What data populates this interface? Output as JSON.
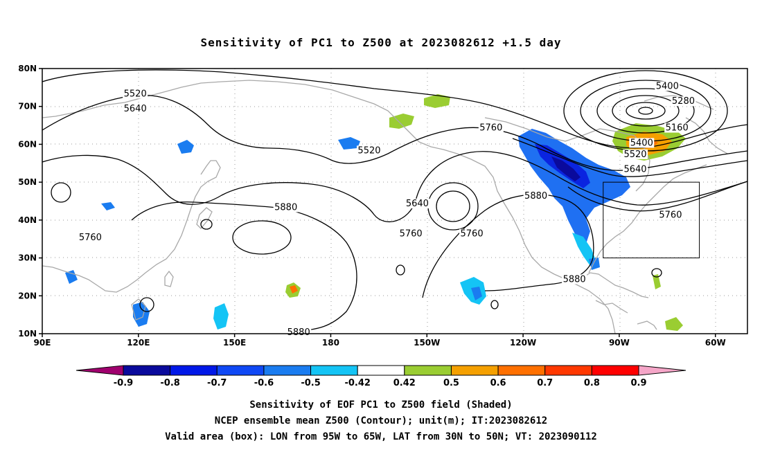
{
  "title": "Sensitivity of PC1 to Z500 at 2023082612 +1.5 day",
  "map": {
    "projection": "cylindrical",
    "lon_range": [
      90,
      310
    ],
    "lat_range": [
      10,
      80
    ],
    "lon_ticks": [
      {
        "lon": 90,
        "label": "90E"
      },
      {
        "lon": 120,
        "label": "120E"
      },
      {
        "lon": 150,
        "label": "150E"
      },
      {
        "lon": 180,
        "label": "180"
      },
      {
        "lon": 210,
        "label": "150W"
      },
      {
        "lon": 240,
        "label": "120W"
      },
      {
        "lon": 270,
        "label": "90W"
      },
      {
        "lon": 300,
        "label": "60W"
      }
    ],
    "lat_ticks": [
      {
        "lat": 10,
        "label": "10N"
      },
      {
        "lat": 20,
        "label": "20N"
      },
      {
        "lat": 30,
        "label": "30N"
      },
      {
        "lat": 40,
        "label": "40N"
      },
      {
        "lat": 50,
        "label": "50N"
      },
      {
        "lat": 60,
        "label": "60N"
      },
      {
        "lat": 70,
        "label": "70N"
      },
      {
        "lat": 80,
        "label": "80N"
      }
    ],
    "grid": "dotted",
    "valid_box": {
      "lon_min": 265,
      "lon_max": 295,
      "lat_min": 30,
      "lat_max": 50
    }
  },
  "contour_labels": [
    {
      "text": "5520",
      "lon": 119,
      "lat": 73
    },
    {
      "text": "5640",
      "lon": 119,
      "lat": 69
    },
    {
      "text": "5520",
      "lon": 192,
      "lat": 58
    },
    {
      "text": "5760",
      "lon": 230,
      "lat": 64
    },
    {
      "text": "5640",
      "lon": 207,
      "lat": 44
    },
    {
      "text": "5760",
      "lon": 105,
      "lat": 35
    },
    {
      "text": "5880",
      "lon": 166,
      "lat": 43
    },
    {
      "text": "5760",
      "lon": 205,
      "lat": 36
    },
    {
      "text": "5760",
      "lon": 224,
      "lat": 36
    },
    {
      "text": "5880",
      "lon": 244,
      "lat": 46
    },
    {
      "text": "5880",
      "lon": 170,
      "lat": 10
    },
    {
      "text": "5880",
      "lon": 256,
      "lat": 24
    },
    {
      "text": "5400",
      "lon": 285,
      "lat": 75
    },
    {
      "text": "5280",
      "lon": 290,
      "lat": 71
    },
    {
      "text": "5160",
      "lon": 288,
      "lat": 64
    },
    {
      "text": "5400",
      "lon": 277,
      "lat": 60
    },
    {
      "text": "5520",
      "lon": 275,
      "lat": 57
    },
    {
      "text": "5640",
      "lon": 275,
      "lat": 53
    },
    {
      "text": "5760",
      "lon": 286,
      "lat": 41
    }
  ],
  "colorbar": {
    "labels": [
      "-0.9",
      "-0.8",
      "-0.7",
      "-0.6",
      "-0.5",
      "-0.42",
      "0.42",
      "0.5",
      "0.6",
      "0.7",
      "0.8",
      "0.9"
    ],
    "colors": [
      "#a0006e",
      "#0a0a9c",
      "#0018e8",
      "#0f48f5",
      "#1a7cf0",
      "#14c4f5",
      "#ffffff",
      "#9acd32",
      "#f5a000",
      "#ff7000",
      "#ff3800",
      "#ff0000",
      "#f5a6c8"
    ]
  },
  "captions": [
    "Sensitivity of EOF PC1 to Z500 field (Shaded)",
    "NCEP ensemble mean Z500 (Contour); unit(m); IT:2023082612",
    "Valid area (box): LON from 95W to 65W, LAT from 30N to 50N; VT: 2023090112"
  ]
}
